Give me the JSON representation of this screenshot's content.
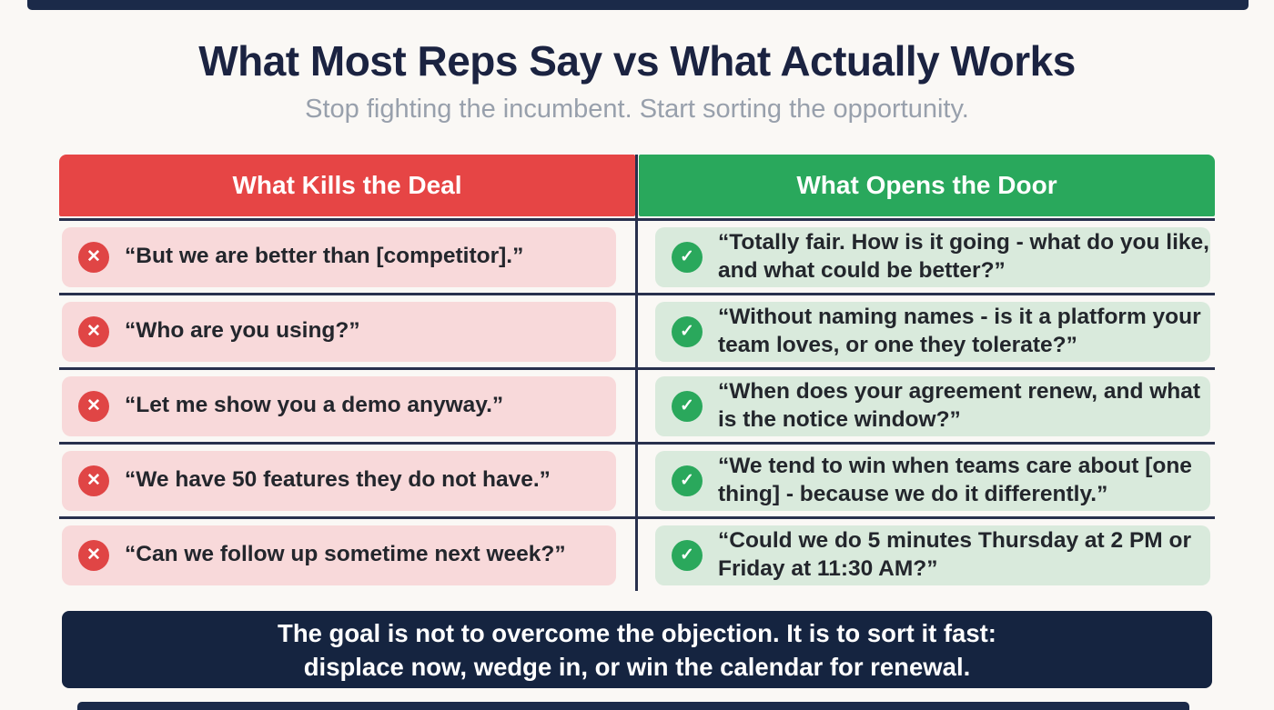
{
  "page": {
    "title": "What Most Reps Say vs What Actually Works",
    "subtitle": "Stop fighting the incumbent. Start sorting the opportunity."
  },
  "table": {
    "kill_header": "What Kills the Deal",
    "open_header": "What Opens the Door",
    "rows": [
      {
        "kill": "“But we are better than [competitor].”",
        "open": "“Totally fair. How is it going - what do you like, and what could be better?”"
      },
      {
        "kill": "“Who are you using?”",
        "open": "“Without naming names - is it a platform your team loves, or one they tolerate?”"
      },
      {
        "kill": "“Let me show you a demo anyway.”",
        "open": "“When does your agreement renew, and what is the notice window?”"
      },
      {
        "kill": "“We have 50 features they do not have.”",
        "open": "“We tend to win when teams care about [one thing] - because we do it differently.”"
      },
      {
        "kill": "“Can we follow up sometime next week?”",
        "open": "“Could we do 5 minutes Thursday at 2 PM or Friday at 11:30 AM?”"
      }
    ]
  },
  "icons": {
    "cross_glyph": "✕",
    "check_glyph": "✓"
  },
  "footer": {
    "line1": "The goal is not to overcome the objection. It is to sort it fast:",
    "line2": "displace now, wedge in, or win the calendar for renewal."
  },
  "colors": {
    "kill_header_bg": "#E64545",
    "open_header_bg": "#29A85C",
    "kill_cell_bg": "#F8D9DA",
    "open_cell_bg": "#D9EADC",
    "cross_badge": "#E04545",
    "check_badge": "#2AA85C",
    "divider_navy": "#28304D",
    "footer_navy": "#152440",
    "title_navy": "#1B2341",
    "subtitle_gray": "#98A0AC",
    "page_bg": "#FAF8F5"
  }
}
